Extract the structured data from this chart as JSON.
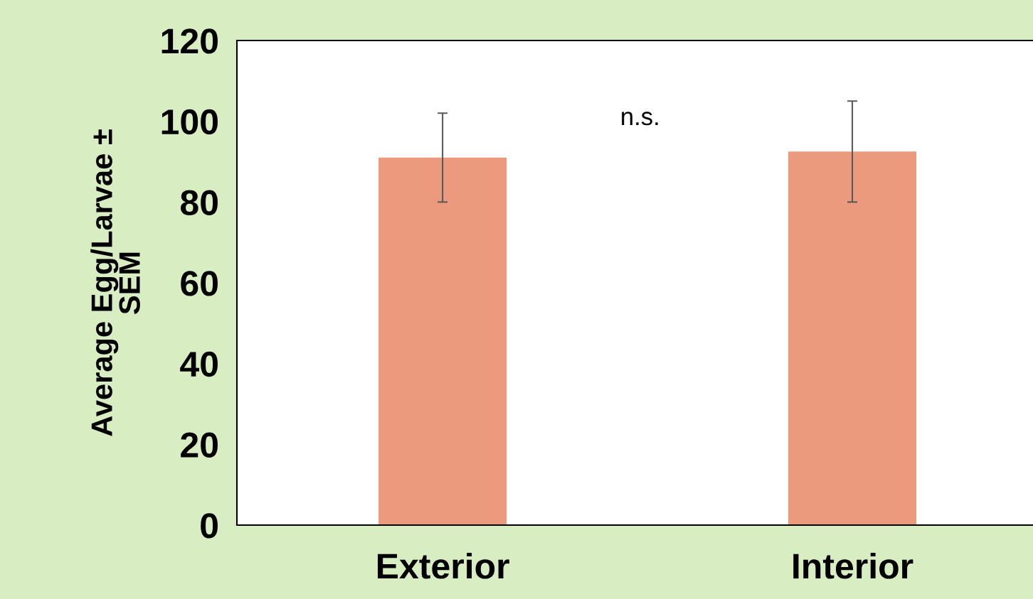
{
  "chart_data": {
    "type": "bar",
    "categories": [
      "Exterior",
      "Interior"
    ],
    "values": [
      91,
      92.5
    ],
    "errors": [
      11,
      12.5
    ],
    "color": "#eb9a7e",
    "ylabel": "Average Egg/Larvae ±\nSEM",
    "ylim": [
      0,
      120
    ],
    "yticks": [
      0,
      20,
      40,
      60,
      80,
      100,
      120
    ],
    "annotations": [
      "n.s."
    ],
    "grid": false,
    "legend": false
  }
}
